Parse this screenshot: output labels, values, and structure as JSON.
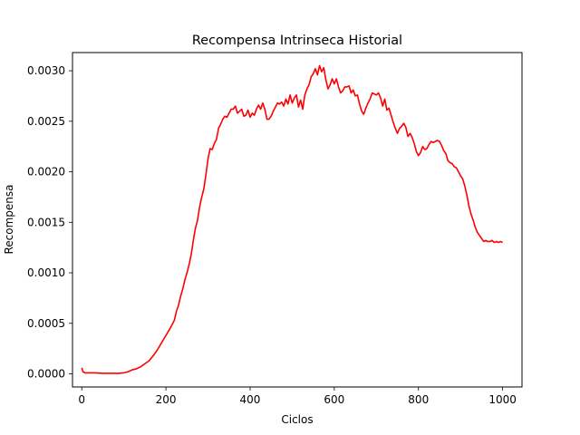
{
  "chart_data": {
    "type": "line",
    "title": "Recompensa Intrinseca Historial",
    "xlabel": "Ciclos",
    "ylabel": "Recompensa",
    "xlim": [
      -22,
      1046
    ],
    "ylim": [
      -0.00013,
      0.00318
    ],
    "xticks": [
      0,
      200,
      400,
      600,
      800,
      1000
    ],
    "yticks": [
      0.0,
      0.0005,
      0.001,
      0.0015,
      0.002,
      0.0025,
      0.003
    ],
    "ytick_labels": [
      "0.0000",
      "0.0005",
      "0.0010",
      "0.0015",
      "0.0020",
      "0.0025",
      "0.0030"
    ],
    "grid": false,
    "series": [
      {
        "color": "#ff0000",
        "x": [
          0,
          3,
          8,
          15,
          30,
          50,
          70,
          90,
          100,
          110,
          120,
          130,
          140,
          150,
          160,
          170,
          180,
          190,
          200,
          210,
          220,
          225,
          230,
          235,
          240,
          245,
          250,
          255,
          260,
          265,
          270,
          275,
          280,
          285,
          290,
          295,
          300,
          305,
          310,
          315,
          320,
          325,
          330,
          335,
          340,
          345,
          350,
          355,
          360,
          365,
          370,
          375,
          380,
          385,
          390,
          395,
          400,
          405,
          410,
          415,
          420,
          425,
          430,
          435,
          440,
          445,
          450,
          455,
          460,
          465,
          470,
          475,
          480,
          485,
          490,
          495,
          500,
          505,
          510,
          515,
          520,
          525,
          530,
          535,
          540,
          545,
          550,
          555,
          560,
          565,
          570,
          575,
          580,
          585,
          590,
          595,
          600,
          605,
          610,
          615,
          620,
          625,
          630,
          635,
          640,
          645,
          650,
          655,
          660,
          665,
          670,
          675,
          680,
          685,
          690,
          695,
          700,
          705,
          710,
          715,
          720,
          725,
          730,
          735,
          740,
          745,
          750,
          755,
          760,
          765,
          770,
          775,
          780,
          785,
          790,
          795,
          800,
          805,
          810,
          815,
          820,
          825,
          830,
          835,
          840,
          845,
          850,
          855,
          860,
          865,
          870,
          875,
          880,
          885,
          890,
          895,
          900,
          905,
          910,
          915,
          920,
          925,
          930,
          935,
          940,
          945,
          950,
          955,
          960,
          965,
          970,
          975,
          980,
          985,
          990,
          995,
          1000
        ],
        "y": [
          6e-05,
          2e-05,
          1e-05,
          1e-05,
          1e-05,
          5e-06,
          5e-06,
          5e-06,
          1e-05,
          2e-05,
          4e-05,
          5e-05,
          7e-05,
          0.0001,
          0.00013,
          0.00018,
          0.00024,
          0.00031,
          0.00038,
          0.00045,
          0.00053,
          0.00062,
          0.00068,
          0.00077,
          0.00084,
          0.00093,
          0.001,
          0.00108,
          0.00118,
          0.00132,
          0.00144,
          0.00152,
          0.00165,
          0.00175,
          0.00183,
          0.00197,
          0.00213,
          0.00223,
          0.00222,
          0.00228,
          0.00232,
          0.00243,
          0.00247,
          0.00252,
          0.00255,
          0.00254,
          0.00258,
          0.00262,
          0.00262,
          0.00265,
          0.00258,
          0.0026,
          0.00262,
          0.00255,
          0.00256,
          0.00261,
          0.00254,
          0.00258,
          0.00256,
          0.00262,
          0.00266,
          0.00262,
          0.00268,
          0.00262,
          0.00252,
          0.00252,
          0.00255,
          0.0026,
          0.00264,
          0.00268,
          0.00267,
          0.00269,
          0.00265,
          0.00272,
          0.00267,
          0.00276,
          0.00268,
          0.00273,
          0.00276,
          0.00264,
          0.00271,
          0.00262,
          0.00276,
          0.00282,
          0.00286,
          0.00294,
          0.00297,
          0.00302,
          0.00296,
          0.00305,
          0.00299,
          0.00303,
          0.00291,
          0.00282,
          0.00286,
          0.00292,
          0.00287,
          0.00292,
          0.00284,
          0.00278,
          0.0028,
          0.00284,
          0.00284,
          0.00285,
          0.00278,
          0.00281,
          0.00275,
          0.00276,
          0.00267,
          0.0026,
          0.00257,
          0.00263,
          0.00268,
          0.00272,
          0.00278,
          0.00277,
          0.00276,
          0.00278,
          0.00273,
          0.00265,
          0.00272,
          0.00261,
          0.00263,
          0.00256,
          0.00249,
          0.00243,
          0.00238,
          0.00243,
          0.00245,
          0.00248,
          0.00244,
          0.00235,
          0.00238,
          0.00234,
          0.00228,
          0.0022,
          0.00216,
          0.00219,
          0.00225,
          0.00222,
          0.00223,
          0.00227,
          0.0023,
          0.00229,
          0.0023,
          0.00231,
          0.0023,
          0.00226,
          0.00221,
          0.00218,
          0.00211,
          0.00209,
          0.00208,
          0.00205,
          0.00204,
          0.002,
          0.00196,
          0.00193,
          0.00186,
          0.00177,
          0.00166,
          0.00158,
          0.00152,
          0.00145,
          0.0014,
          0.00137,
          0.00134,
          0.00131,
          0.00132,
          0.00131,
          0.00131,
          0.00132,
          0.0013,
          0.00131,
          0.0013,
          0.00131,
          0.0013
        ]
      }
    ]
  }
}
